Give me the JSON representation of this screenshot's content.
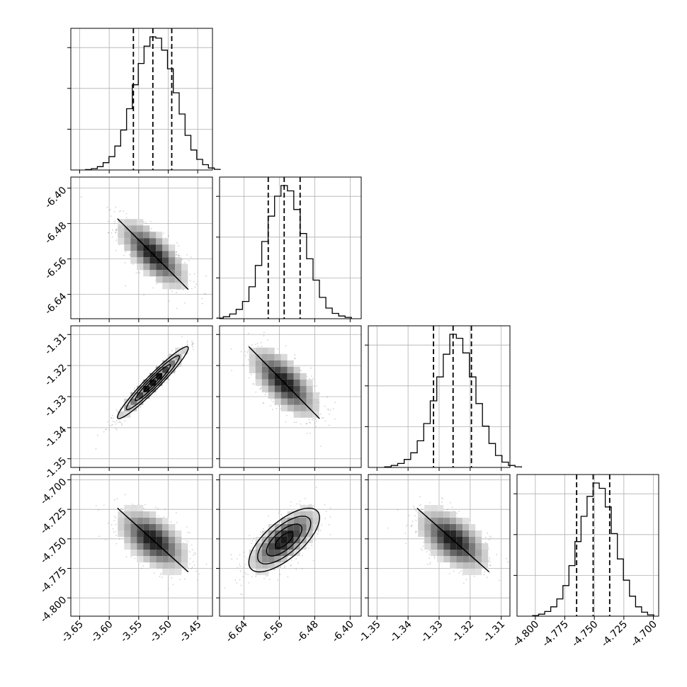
{
  "chart_data": {
    "type": "corner",
    "title": "",
    "grid": true,
    "colors": {
      "hist": "#000000",
      "contour": "#000000",
      "grid": "#b0b0b0",
      "scatter": "#808080"
    },
    "parameters": [
      {
        "label": "",
        "range": [
          -3.665,
          -3.425
        ],
        "ticks": [
          "-3.65",
          "-3.60",
          "-3.55",
          "-3.50",
          "-3.45"
        ],
        "tick_values": [
          -3.65,
          -3.6,
          -3.55,
          -3.5,
          -3.45
        ],
        "mean": -3.526,
        "sd": 0.03,
        "quantiles": [
          -3.559,
          -3.526,
          -3.494
        ]
      },
      {
        "label": "",
        "range": [
          -6.695,
          -6.375
        ],
        "ticks": [
          "-6.64",
          "-6.56",
          "-6.48",
          "-6.40"
        ],
        "tick_values": [
          -6.64,
          -6.56,
          -6.48,
          -6.4
        ],
        "mean": -6.549,
        "sd": 0.04,
        "quantiles": [
          -6.585,
          -6.549,
          -6.513
        ]
      },
      {
        "label": "",
        "range": [
          -1.3528,
          -1.3072
        ],
        "ticks": [
          "-1.35",
          "-1.34",
          "-1.33",
          "-1.32",
          "-1.31"
        ],
        "tick_values": [
          -1.35,
          -1.34,
          -1.33,
          -1.32,
          -1.31
        ],
        "mean": -1.3255,
        "sd": 0.0058,
        "quantiles": [
          -1.3318,
          -1.3255,
          -1.3196
        ]
      },
      {
        "label": "",
        "range": [
          -4.8155,
          -4.6955
        ],
        "ticks": [
          "-4.800",
          "-4.775",
          "-4.750",
          "-4.725",
          "-4.700"
        ],
        "tick_values": [
          -4.8,
          -4.775,
          -4.75,
          -4.725,
          -4.7
        ],
        "mean": -4.751,
        "sd": 0.0135,
        "quantiles": [
          -4.765,
          -4.751,
          -4.737
        ]
      }
    ],
    "correlations": [
      [
        1,
        -0.72,
        0.96,
        -0.55
      ],
      [
        -0.72,
        1,
        -0.68,
        0.7
      ],
      [
        0.96,
        -0.68,
        1,
        -0.55
      ],
      [
        -0.55,
        0.7,
        -0.55,
        1
      ]
    ],
    "histograms": [
      [
        0.003,
        0.01,
        0.025,
        0.055,
        0.1,
        0.18,
        0.3,
        0.46,
        0.64,
        0.8,
        0.93,
        1.0,
        0.99,
        0.9,
        0.76,
        0.58,
        0.42,
        0.26,
        0.15,
        0.08,
        0.04,
        0.015,
        0.005
      ],
      [
        0.005,
        0.015,
        0.035,
        0.07,
        0.13,
        0.24,
        0.4,
        0.58,
        0.77,
        0.92,
        1.0,
        0.96,
        0.82,
        0.64,
        0.45,
        0.29,
        0.16,
        0.08,
        0.04,
        0.02,
        0.01
      ],
      [
        0.005,
        0.015,
        0.03,
        0.06,
        0.11,
        0.2,
        0.33,
        0.5,
        0.68,
        0.85,
        1.0,
        0.97,
        0.86,
        0.68,
        0.48,
        0.31,
        0.18,
        0.09,
        0.04,
        0.015,
        0.005
      ],
      [
        0.005,
        0.015,
        0.035,
        0.07,
        0.13,
        0.23,
        0.38,
        0.56,
        0.75,
        0.9,
        1.0,
        0.96,
        0.82,
        0.62,
        0.43,
        0.27,
        0.15,
        0.07,
        0.03,
        0.01
      ]
    ]
  }
}
